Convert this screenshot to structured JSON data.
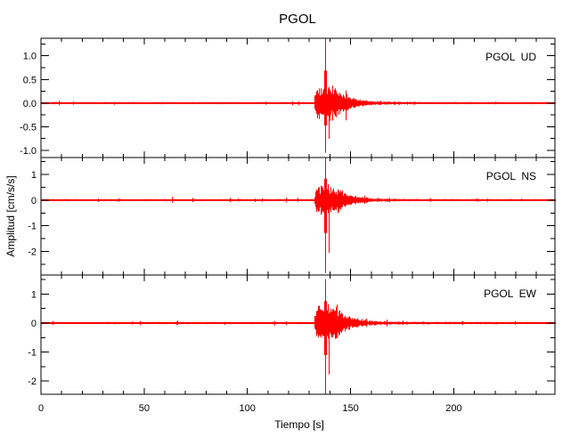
{
  "chart_data": {
    "type": "line",
    "title": "PGOL",
    "xlabel": "Tiempo [s]",
    "ylabel": "Amplitud [cm/s/s]",
    "trace_color": "#ff0000",
    "axis_color": "#000000",
    "background_color": "#ffffff",
    "x": {
      "range": [
        0,
        249
      ],
      "major_ticks": [
        0,
        50,
        100,
        150,
        200
      ],
      "major_labels": [
        "0",
        "50",
        "100",
        "150",
        "200"
      ],
      "minor_step": 10
    },
    "event": {
      "p_onset_s": 132,
      "s_peak_s": 137.5,
      "burst_end_s": 142,
      "coda_end_s": 170
    },
    "panels": [
      {
        "id": "ud",
        "label": "PGOL  UD",
        "ylim": [
          -1.15,
          1.37
        ],
        "y_major_ticks": [
          1.0,
          0.5,
          0.0,
          -0.5,
          -1.0
        ],
        "y_major_labels": [
          "1.0",
          "0.5",
          "0.0",
          "-0.5",
          "-1.0"
        ],
        "y_minor_step": 0.25,
        "peak_positive": 1.37,
        "peak_negative": -1.05,
        "burst_amplitude": 0.35,
        "noise_amplitude": 0.02,
        "seed": 7
      },
      {
        "id": "ns",
        "label": "PGOL  NS",
        "ylim": [
          -2.92,
          1.66
        ],
        "y_major_ticks": [
          1,
          0,
          -1,
          -2
        ],
        "y_major_labels": [
          "1",
          "0",
          "-1",
          "-2"
        ],
        "y_minor_step": 0.5,
        "peak_positive": 1.66,
        "peak_negative": -2.85,
        "burst_amplitude": 0.55,
        "noise_amplitude": 0.035,
        "seed": 13
      },
      {
        "id": "ew",
        "label": "PGOL  EW",
        "ylim": [
          -2.46,
          1.66
        ],
        "y_major_ticks": [
          1,
          0,
          -1,
          -2
        ],
        "y_major_labels": [
          "1",
          "0",
          "-1",
          "-2"
        ],
        "y_minor_step": 0.5,
        "peak_positive": 1.52,
        "peak_negative": -2.46,
        "burst_amplitude": 0.6,
        "noise_amplitude": 0.035,
        "seed": 21
      }
    ]
  }
}
